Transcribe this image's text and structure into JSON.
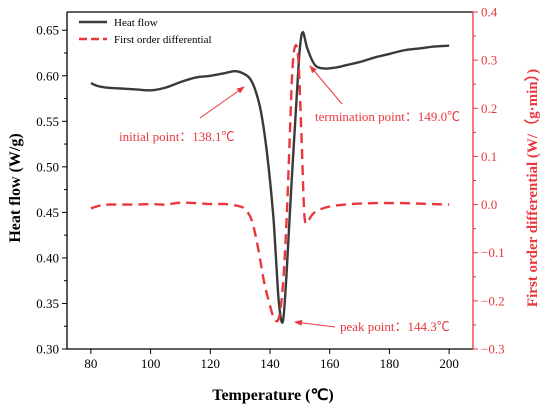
{
  "chart_data": {
    "type": "line",
    "xlabel": "Temperature (℃)",
    "ylabel_left": "Heat flow (W/g)",
    "ylabel_right": "First order differential (W/（g·min）)",
    "xlim": [
      72,
      208
    ],
    "ylim_left": [
      0.3,
      0.67
    ],
    "ylim_right": [
      -0.3,
      0.4
    ],
    "xticks": [
      80,
      100,
      120,
      140,
      160,
      180,
      200
    ],
    "yticks_left": [
      0.3,
      0.35,
      0.4,
      0.45,
      0.5,
      0.55,
      0.6,
      0.65
    ],
    "yticks_right": [
      -0.3,
      -0.2,
      -0.1,
      0.0,
      0.1,
      0.2,
      0.3,
      0.4
    ],
    "xtick_labels": [
      "80",
      "100",
      "120",
      "140",
      "160",
      "180",
      "200"
    ],
    "ytick_labels_left": [
      "0.30",
      "0.35",
      "0.40",
      "0.45",
      "0.50",
      "0.55",
      "0.60",
      "0.65"
    ],
    "ytick_labels_right": [
      "−0.3",
      "−0.2",
      "−0.1",
      "0.0",
      "0.1",
      "0.2",
      "0.3",
      "0.4"
    ],
    "legend_position": "top-left",
    "colors": {
      "heat_flow": "#3a3a3a",
      "differential": "#e8383d",
      "right_axis": "#e8383d"
    },
    "series": [
      {
        "name": "Heat flow",
        "axis": "left",
        "style": "solid",
        "x": [
          80,
          82,
          85,
          90,
          95,
          100,
          105,
          110,
          115,
          120,
          125,
          128,
          130,
          133,
          135,
          137,
          139,
          141,
          142,
          143,
          144.3,
          145.5,
          147,
          149,
          150,
          151,
          152.5,
          155,
          158,
          162,
          166,
          170,
          175,
          180,
          185,
          190,
          195,
          200
        ],
        "y": [
          0.592,
          0.589,
          0.587,
          0.586,
          0.585,
          0.584,
          0.587,
          0.593,
          0.598,
          0.6,
          0.603,
          0.605,
          0.604,
          0.598,
          0.585,
          0.56,
          0.515,
          0.45,
          0.4,
          0.35,
          0.33,
          0.38,
          0.47,
          0.58,
          0.63,
          0.648,
          0.63,
          0.612,
          0.608,
          0.609,
          0.612,
          0.615,
          0.62,
          0.624,
          0.628,
          0.63,
          0.632,
          0.633
        ]
      },
      {
        "name": "First order differential",
        "axis": "right",
        "style": "dashed",
        "x": [
          80,
          83,
          86,
          90,
          95,
          100,
          105,
          110,
          115,
          120,
          125,
          130,
          132,
          134,
          136,
          138,
          140,
          141.5,
          143,
          144.3,
          145.5,
          146.5,
          147.5,
          148.5,
          149.5,
          150.5,
          151.5,
          152.5,
          154,
          156,
          160,
          165,
          170,
          175,
          180,
          185,
          190,
          195,
          200
        ],
        "y": [
          -0.008,
          -0.002,
          0.0,
          0.0,
          0.0,
          0.001,
          0.0,
          0.004,
          0.003,
          0.001,
          0.001,
          -0.004,
          -0.012,
          -0.035,
          -0.09,
          -0.16,
          -0.21,
          -0.238,
          -0.235,
          -0.17,
          -0.04,
          0.12,
          0.28,
          0.33,
          0.3,
          0.15,
          -0.02,
          -0.036,
          -0.022,
          -0.012,
          -0.004,
          0.0,
          0.002,
          0.003,
          0.003,
          0.003,
          0.002,
          0.001,
          0.0
        ]
      }
    ],
    "annotations": [
      {
        "text": "initial point：138.1℃",
        "target": {
          "x": 130,
          "y": 0.604,
          "axis": "left"
        }
      },
      {
        "text": "termination point：149.0℃",
        "target": {
          "x": 151.5,
          "y": 0.622,
          "axis": "left"
        }
      },
      {
        "text": "peak point：144.3℃",
        "target": {
          "x": 145.2,
          "y": 0.333,
          "axis": "left"
        }
      }
    ]
  }
}
